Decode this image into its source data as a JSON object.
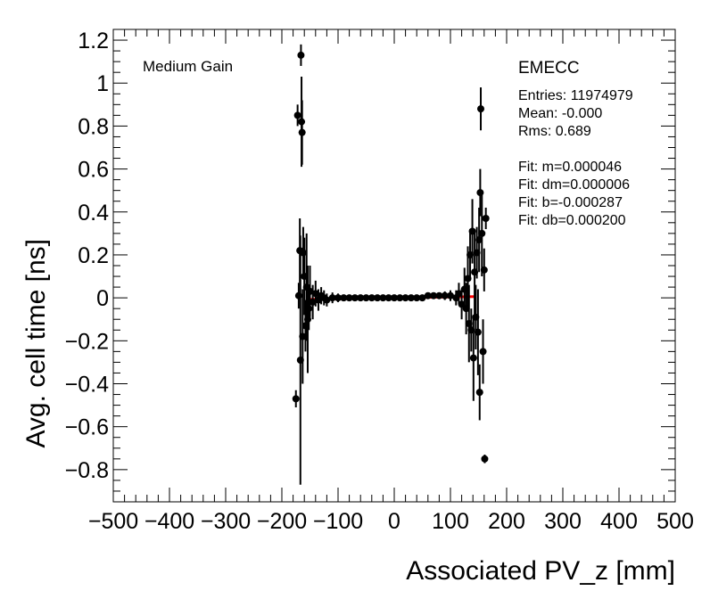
{
  "chart_data": {
    "type": "scatter",
    "title": "",
    "xlabel": "Associated PV_z [mm]",
    "ylabel": "Avg. cell time [ns]",
    "xlim": [
      -500,
      500
    ],
    "ylim": [
      -0.95,
      1.25
    ],
    "x_ticks": [
      -500,
      -400,
      -300,
      -200,
      -100,
      0,
      100,
      200,
      300,
      400,
      500
    ],
    "x_tick_labels": [
      "−500",
      "−400",
      "−300",
      "−200",
      "−100",
      "0",
      "100",
      "200",
      "300",
      "400",
      "500"
    ],
    "y_ticks": [
      -0.8,
      -0.6,
      -0.4,
      -0.2,
      0,
      0.2,
      0.4,
      0.6,
      0.8,
      1,
      1.2
    ],
    "y_tick_labels": [
      "−0.8",
      "−0.6",
      "−0.4",
      "−0.2",
      "0",
      "0.2",
      "0.4",
      "0.6",
      "0.8",
      "1",
      "1.2"
    ],
    "grid": false,
    "gain_label": "Medium Gain",
    "region_label": "EMECC",
    "stats": [
      "Entries: 11974979",
      "Mean: -0.000",
      "Rms: 0.689"
    ],
    "fit_text": [
      "Fit: m=0.000046",
      "Fit: dm=0.000006",
      "Fit: b=-0.000287",
      "Fit: db=0.000200"
    ],
    "fit_line": {
      "color": "#ff0000",
      "x": [
        -150,
        143
      ],
      "y": [
        -0.007,
        0.006
      ]
    },
    "marker_color": "#000000",
    "points": [
      {
        "x": -175,
        "y": -0.47,
        "e": 0.04
      },
      {
        "x": -172,
        "y": 0.85,
        "e": 0.05
      },
      {
        "x": -170,
        "y": 0.01,
        "e": 0.06
      },
      {
        "x": -168,
        "y": 0.22,
        "e": 0.15
      },
      {
        "x": -167,
        "y": -0.29,
        "e": 0.58
      },
      {
        "x": -166,
        "y": 1.13,
        "e": 0.05
      },
      {
        "x": -165,
        "y": 0.82,
        "e": 0.21
      },
      {
        "x": -164,
        "y": 0.77,
        "e": 0.15
      },
      {
        "x": -163,
        "y": -0.18,
        "e": 0.22
      },
      {
        "x": -162,
        "y": 0.21,
        "e": 0.12
      },
      {
        "x": -160,
        "y": 0.1,
        "e": 0.18
      },
      {
        "x": -158,
        "y": -0.13,
        "e": 0.12
      },
      {
        "x": -156,
        "y": 0.05,
        "e": 0.25
      },
      {
        "x": -154,
        "y": -0.1,
        "e": 0.25
      },
      {
        "x": -152,
        "y": -0.05,
        "e": 0.1
      },
      {
        "x": -150,
        "y": 0.03,
        "e": 0.12
      },
      {
        "x": -145,
        "y": -0.02,
        "e": 0.08
      },
      {
        "x": -140,
        "y": 0.02,
        "e": 0.06
      },
      {
        "x": -135,
        "y": -0.01,
        "e": 0.05
      },
      {
        "x": -130,
        "y": 0.01,
        "e": 0.04
      },
      {
        "x": -125,
        "y": 0.0,
        "e": 0.035
      },
      {
        "x": -120,
        "y": -0.01,
        "e": 0.03
      },
      {
        "x": -110,
        "y": 0.0,
        "e": 0.025
      },
      {
        "x": -100,
        "y": 0.0,
        "e": 0.02
      },
      {
        "x": -90,
        "y": 0.0,
        "e": 0.015
      },
      {
        "x": -80,
        "y": 0.0,
        "e": 0.012
      },
      {
        "x": -70,
        "y": 0.0,
        "e": 0.01
      },
      {
        "x": -60,
        "y": 0.0,
        "e": 0.008
      },
      {
        "x": -50,
        "y": 0.0,
        "e": 0.008
      },
      {
        "x": -40,
        "y": 0.0,
        "e": 0.007
      },
      {
        "x": -30,
        "y": 0.0,
        "e": 0.007
      },
      {
        "x": -20,
        "y": 0.0,
        "e": 0.006
      },
      {
        "x": -10,
        "y": 0.0,
        "e": 0.006
      },
      {
        "x": 0,
        "y": 0.0,
        "e": 0.006
      },
      {
        "x": 10,
        "y": 0.0,
        "e": 0.006
      },
      {
        "x": 20,
        "y": 0.0,
        "e": 0.007
      },
      {
        "x": 30,
        "y": 0.0,
        "e": 0.007
      },
      {
        "x": 40,
        "y": 0.0,
        "e": 0.008
      },
      {
        "x": 50,
        "y": 0.0,
        "e": 0.009
      },
      {
        "x": 60,
        "y": 0.01,
        "e": 0.01
      },
      {
        "x": 70,
        "y": 0.01,
        "e": 0.012
      },
      {
        "x": 80,
        "y": 0.01,
        "e": 0.015
      },
      {
        "x": 90,
        "y": 0.01,
        "e": 0.02
      },
      {
        "x": 100,
        "y": 0.01,
        "e": 0.025
      },
      {
        "x": 110,
        "y": 0.0,
        "e": 0.035
      },
      {
        "x": 115,
        "y": 0.02,
        "e": 0.05
      },
      {
        "x": 120,
        "y": -0.03,
        "e": 0.07
      },
      {
        "x": 125,
        "y": 0.04,
        "e": 0.1
      },
      {
        "x": 128,
        "y": -0.05,
        "e": 0.12
      },
      {
        "x": 131,
        "y": 0.09,
        "e": 0.15
      },
      {
        "x": 133,
        "y": -0.12,
        "e": 0.18
      },
      {
        "x": 135,
        "y": 0.2,
        "e": 0.12
      },
      {
        "x": 137,
        "y": -0.15,
        "e": 0.1
      },
      {
        "x": 139,
        "y": 0.31,
        "e": 0.15
      },
      {
        "x": 141,
        "y": -0.28,
        "e": 0.2
      },
      {
        "x": 143,
        "y": 0.12,
        "e": 0.2
      },
      {
        "x": 145,
        "y": -0.09,
        "e": 0.15
      },
      {
        "x": 147,
        "y": 0.21,
        "e": 0.12
      },
      {
        "x": 149,
        "y": -0.16,
        "e": 0.2
      },
      {
        "x": 151,
        "y": 0.27,
        "e": 0.15
      },
      {
        "x": 152,
        "y": -0.44,
        "e": 0.13
      },
      {
        "x": 153,
        "y": 0.49,
        "e": 0.11
      },
      {
        "x": 154,
        "y": 0.88,
        "e": 0.1
      },
      {
        "x": 156,
        "y": 0.3,
        "e": 0.2
      },
      {
        "x": 158,
        "y": -0.25,
        "e": 0.15
      },
      {
        "x": 160,
        "y": 0.13,
        "e": 0.1
      },
      {
        "x": 161,
        "y": -0.75,
        "e": 0.02
      },
      {
        "x": 163,
        "y": 0.37,
        "e": 0.05
      }
    ]
  }
}
